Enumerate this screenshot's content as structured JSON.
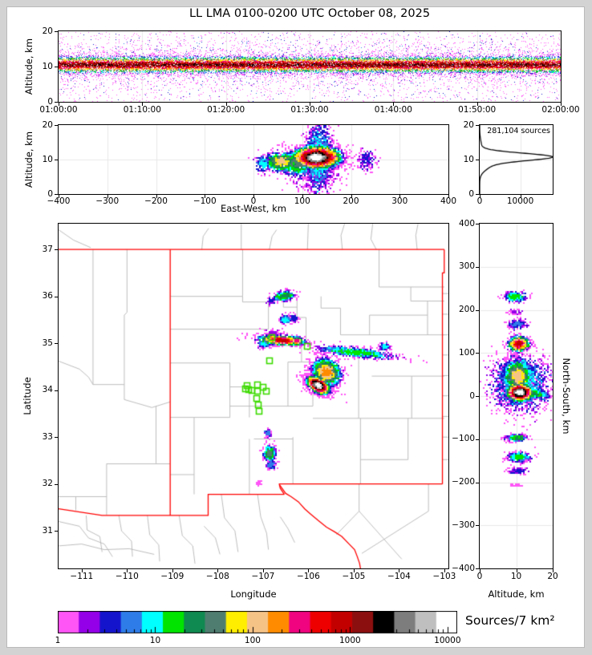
{
  "title": "LL LMA 0100-0200 UTC October 08, 2025",
  "colors": {
    "cmap": [
      "#ff55f7",
      "#9400e8",
      "#1414cc",
      "#2e7ce8",
      "#00ffff",
      "#00e400",
      "#0f8a50",
      "#4f7d70",
      "#ffee00",
      "#f6c387",
      "#ff8c00",
      "#f0047f",
      "#ee0000",
      "#c30000",
      "#8c0f0f",
      "#000000",
      "#7d7d7d",
      "#bfbfbf",
      "#ffffff"
    ],
    "state_border": "#ff0000",
    "county_line": "#b5b5b5",
    "station": "#3ddb00",
    "grid": "#e8e8e8",
    "curve": "#000000",
    "figure_margin": "#d3d3d3"
  },
  "chart_data": [
    {
      "id": "time_altitude",
      "type": "scatter",
      "ylabel": "Altitude, km",
      "x_range_s": [
        0,
        3600
      ],
      "xticks_s": [
        0,
        600,
        1200,
        1800,
        2400,
        3000,
        3600
      ],
      "xtick_labels": [
        "01:00:00",
        "01:10:00",
        "01:20:00",
        "01:30:00",
        "01:40:00",
        "01:50:00",
        "02:00:00"
      ],
      "y_range_km": [
        0,
        20
      ],
      "yticks_km": [
        0,
        10,
        20
      ],
      "band": {
        "center_km": 10.6,
        "sigma_km": 1.2,
        "half_width_km": 2.6,
        "max_level": 15,
        "n_core": 20000,
        "n_mid": 3400,
        "n_outlier": 2100
      }
    },
    {
      "id": "eastwest_altitude",
      "type": "scatter",
      "xlabel": "East-West, km",
      "ylabel": "Altitude, km",
      "x_range_km": [
        -400,
        400
      ],
      "xticks_km": [
        -400,
        -300,
        -200,
        -100,
        0,
        100,
        200,
        300,
        400
      ],
      "y_range_km": [
        0,
        20
      ],
      "yticks_km": [
        0,
        10,
        20
      ],
      "blob_format": "[center_x, center_y, sigma_x, sigma_y, rot_deg, max_color_level, n_points]",
      "blobs": [
        [
          132,
          11,
          14,
          5.2,
          0,
          4,
          1500
        ],
        [
          88,
          9.2,
          18,
          2.0,
          0,
          7,
          600
        ],
        [
          55,
          9.6,
          16,
          1.5,
          0,
          9,
          550
        ],
        [
          18,
          9.0,
          8,
          1.2,
          0,
          4,
          180
        ],
        [
          230,
          10.2,
          9,
          1.4,
          0,
          2,
          160
        ],
        [
          128,
          6,
          30,
          2.5,
          0,
          1,
          260
        ],
        [
          128,
          10.8,
          26,
          1.7,
          0,
          18,
          2800
        ]
      ]
    },
    {
      "id": "source_histogram",
      "type": "line",
      "annotation": "281,104 sources",
      "x_range": [
        0,
        18000
      ],
      "xticks": [
        0,
        10000
      ],
      "xtick_labels": [
        "0",
        "10000"
      ],
      "y_range_km": [
        0,
        20
      ],
      "yticks_km": [
        0,
        10,
        20
      ],
      "profile_components": [
        {
          "amp": 16800,
          "center_km": 10.8,
          "sigma_km": 1.05
        },
        {
          "amp": 2600,
          "center_km": 8.6,
          "sigma_km": 1.6
        },
        {
          "amp": 420,
          "center_km": 13.8,
          "sigma_km": 1.8
        }
      ]
    },
    {
      "id": "plan_map",
      "type": "scatter",
      "xlabel": "Longitude",
      "ylabel": "Latitude",
      "x_range_deg": [
        -111.51,
        -102.91
      ],
      "xticks_deg": [
        -111,
        -110,
        -109,
        -108,
        -107,
        -106,
        -105,
        -104,
        -103
      ],
      "y_range_deg": [
        30.2,
        37.55
      ],
      "yticks_deg": [
        31,
        32,
        33,
        34,
        35,
        36,
        37
      ],
      "blob_format": "[center_lon, center_lat, sigma_lon, sigma_lat, rot_deg, max_color_level, n_points]",
      "blobs": [
        [
          -105.62,
          34.4,
          0.17,
          0.14,
          -35,
          10,
          1500
        ],
        [
          -104.95,
          34.82,
          0.42,
          0.05,
          -6,
          5,
          800
        ],
        [
          -104.33,
          34.94,
          0.06,
          0.035,
          0,
          4,
          120
        ],
        [
          -105.8,
          34.12,
          0.14,
          0.075,
          -30,
          18,
          2400
        ],
        [
          -106.6,
          35.08,
          0.26,
          0.05,
          -4,
          13,
          1000
        ],
        [
          -106.27,
          35.06,
          0.07,
          0.045,
          0,
          11,
          260
        ],
        [
          -107.0,
          35.01,
          0.07,
          0.05,
          0,
          4,
          160
        ],
        [
          -106.76,
          35.22,
          0.09,
          0.04,
          0,
          1,
          80
        ],
        [
          -106.52,
          35.52,
          0.06,
          0.045,
          0,
          4,
          200
        ],
        [
          -106.34,
          35.55,
          0.05,
          0.04,
          0,
          2,
          90
        ],
        [
          -106.55,
          36.02,
          0.12,
          0.05,
          8,
          6,
          380
        ],
        [
          -106.85,
          35.92,
          0.04,
          0.035,
          0,
          2,
          70
        ],
        [
          -106.87,
          32.67,
          0.065,
          0.09,
          0,
          7,
          380
        ],
        [
          -106.83,
          32.43,
          0.05,
          0.05,
          0,
          3,
          140
        ],
        [
          -107.12,
          32.03,
          0.03,
          0.03,
          0,
          0,
          30
        ],
        [
          -106.9,
          33.1,
          0.04,
          0.04,
          0,
          3,
          70
        ]
      ],
      "stations_deg": [
        [
          -107.38,
          34.03
        ],
        [
          -107.31,
          34.02
        ],
        [
          -107.24,
          34.0
        ],
        [
          -107.13,
          34.12
        ],
        [
          -107.13,
          33.98
        ],
        [
          -107.14,
          33.82
        ],
        [
          -106.99,
          34.06
        ],
        [
          -106.92,
          33.97
        ],
        [
          -107.11,
          33.68
        ],
        [
          -107.09,
          33.55
        ],
        [
          -106.86,
          34.62
        ],
        [
          -106.02,
          34.94
        ],
        [
          -106.8,
          35.12
        ],
        [
          -107.35,
          34.1
        ]
      ],
      "state_borders_deg": [
        [
          -111.51,
          37,
          -103.0,
          37
        ],
        [
          -109.047,
          37,
          -109.047,
          31.33
        ],
        [
          -111.51,
          31.47,
          -110.55,
          31.33,
          -109.047,
          31.33,
          -108.21,
          31.33,
          -108.21,
          31.78,
          -106.53,
          31.78
        ],
        [
          -106.53,
          31.78,
          -106.62,
          31.91,
          -106.64,
          31.99
        ],
        [
          -106.64,
          31.99,
          -106.64,
          32.0,
          -103.042,
          32.0
        ],
        [
          -103.042,
          32.0,
          -103.042,
          36.5,
          -103.002,
          36.5,
          -103.002,
          37.0
        ],
        [
          -106.64,
          31.99,
          -106.5,
          31.8,
          -106.38,
          31.73,
          -106.22,
          31.62,
          -106.08,
          31.47,
          -105.95,
          31.36,
          -105.78,
          31.22,
          -105.6,
          31.08,
          -105.42,
          30.98,
          -105.26,
          30.88,
          -105.1,
          30.72,
          -104.98,
          30.6,
          -104.92,
          30.45,
          -104.87,
          30.31,
          -104.85,
          30.2
        ]
      ],
      "county_lines_deg": [
        [
          -108.35,
          37,
          -108.32,
          37.28,
          -108.2,
          37.45
        ],
        [
          -107.48,
          37,
          -107.48,
          37.55
        ],
        [
          -106.86,
          37,
          -106.8,
          37.28,
          -106.7,
          37.42
        ],
        [
          -106.02,
          37,
          -106.0,
          37.55
        ],
        [
          -105.25,
          37,
          -105.28,
          37.3,
          -105.2,
          37.55
        ],
        [
          -104.5,
          37,
          -104.62,
          37.22,
          -104.58,
          37.55
        ],
        [
          -103.6,
          37,
          -103.63,
          37.3,
          -103.58,
          37.55
        ],
        [
          -111.51,
          37.42,
          -111.18,
          37.2,
          -110.8,
          37.04
        ],
        [
          -110.75,
          37,
          -110.75,
          34.12
        ],
        [
          -110.0,
          37,
          -110.0,
          35.66,
          -110.06,
          35.6,
          -110.06,
          33.8
        ],
        [
          -110.75,
          34.12,
          -110.06,
          34.12
        ],
        [
          -111.51,
          34.62,
          -111.05,
          34.45,
          -110.85,
          34.28,
          -110.75,
          34.12
        ],
        [
          -110.06,
          33.8,
          -109.45,
          33.63,
          -109.05,
          33.75
        ],
        [
          -109.36,
          33.66,
          -109.36,
          32.43
        ],
        [
          -110.45,
          32.43,
          -109.05,
          32.43
        ],
        [
          -110.45,
          32.43,
          -110.45,
          31.34
        ],
        [
          -111.51,
          31.73,
          -110.45,
          31.73
        ],
        [
          -111.13,
          31.73,
          -111.13,
          31.44
        ],
        [
          -107.45,
          37,
          -107.45,
          36.0
        ],
        [
          -109.05,
          36.0,
          -107.45,
          36.0
        ],
        [
          -107.45,
          36.0,
          -107.45,
          35.88,
          -106.88,
          35.88,
          -106.88,
          35.3
        ],
        [
          -109.05,
          35.3,
          -106.88,
          35.3
        ],
        [
          -109.05,
          34.58,
          -107.73,
          34.58
        ],
        [
          -107.73,
          34.58,
          -107.73,
          33.42
        ],
        [
          -109.05,
          33.42,
          -107.73,
          33.42
        ],
        [
          -108.52,
          33.42,
          -108.52,
          31.78
        ],
        [
          -109.05,
          32.2,
          -108.52,
          32.2
        ],
        [
          -107.73,
          33.66,
          -105.9,
          33.66
        ],
        [
          -107.73,
          34.07,
          -107.3,
          34.07,
          -107.3,
          33.42
        ],
        [
          -106.45,
          34.6,
          -106.45,
          33.66
        ],
        [
          -105.9,
          34.6,
          -105.9,
          33.66
        ],
        [
          -106.45,
          34.6,
          -105.9,
          34.6
        ],
        [
          -104.44,
          37,
          -104.44,
          36.2
        ],
        [
          -104.44,
          36.2,
          -103.0,
          36.2
        ],
        [
          -103.74,
          36.2,
          -103.74,
          35.9,
          -103.0,
          35.9
        ],
        [
          -105.72,
          36.0,
          -105.72,
          35.75,
          -105.29,
          35.75,
          -105.29,
          35.18
        ],
        [
          -105.29,
          35.18,
          -103.0,
          35.18
        ],
        [
          -104.65,
          35.6,
          -103.37,
          35.6
        ],
        [
          -103.37,
          35.9,
          -103.37,
          35.18
        ],
        [
          -104.65,
          35.6,
          -104.65,
          35.18
        ],
        [
          -106.25,
          35.97,
          -106.25,
          35.55,
          -106.05,
          35.55,
          -106.05,
          35.05,
          -106.15,
          35.05,
          -106.15,
          34.6
        ],
        [
          -106.55,
          35.88,
          -106.55,
          35.77,
          -106.25,
          35.77
        ],
        [
          -106.88,
          34.95,
          -106.15,
          34.95
        ],
        [
          -104.89,
          34.75,
          -104.89,
          33.4
        ],
        [
          -105.9,
          33.4,
          -103.0,
          33.4
        ],
        [
          -103.72,
          34.3,
          -103.72,
          33.4
        ],
        [
          -104.6,
          34.3,
          -103.0,
          34.3
        ],
        [
          -103.8,
          33.4,
          -103.8,
          32.52
        ],
        [
          -104.85,
          32.52,
          -103.8,
          32.52
        ],
        [
          -104.85,
          33.4,
          -104.85,
          32.0
        ],
        [
          -106.34,
          33.0,
          -106.34,
          32.0
        ],
        [
          -107.2,
          32.96,
          -106.34,
          32.96
        ],
        [
          -107.3,
          32.96,
          -107.3,
          31.78
        ],
        [
          -105.38,
          30.92,
          -104.88,
          31.42
        ],
        [
          -104.88,
          31.42,
          -104.88,
          32.0
        ],
        [
          -104.88,
          31.42,
          -103.94,
          30.4
        ],
        [
          -104.82,
          30.52,
          -103.35,
          31.42
        ],
        [
          -103.35,
          31.42,
          -103.35,
          32.0
        ],
        [
          -111.51,
          31.2,
          -111.05,
          31.1,
          -110.85,
          30.85,
          -110.5,
          30.72,
          -110.32,
          30.45
        ],
        [
          -110.9,
          31.33,
          -110.88,
          31.02,
          -110.6,
          30.88,
          -110.55,
          30.55
        ],
        [
          -110.18,
          31.33,
          -110.12,
          31.0,
          -109.9,
          30.78,
          -109.88,
          30.45
        ],
        [
          -109.55,
          31.33,
          -109.5,
          30.92,
          -109.3,
          30.7,
          -109.28,
          30.35
        ],
        [
          -108.85,
          31.33,
          -108.78,
          30.9,
          -108.55,
          30.68,
          -108.5,
          30.3
        ],
        [
          -107.92,
          31.78,
          -107.85,
          31.28,
          -107.62,
          31.0,
          -107.55,
          30.55
        ],
        [
          -107.12,
          31.78,
          -107.05,
          31.3,
          -106.92,
          30.95,
          -106.88,
          30.6
        ],
        [
          -111.51,
          30.68,
          -111.0,
          30.72,
          -110.5,
          30.6,
          -109.95,
          30.62,
          -109.4,
          30.5
        ],
        [
          -108.3,
          31.1,
          -108.05,
          30.85,
          -107.95,
          30.5
        ],
        [
          -106.62,
          31.3,
          -106.45,
          31.05,
          -106.3,
          30.75
        ]
      ],
      "tx_sliver_lats": [
        36.06,
        35.62,
        35.18,
        34.75,
        34.31,
        33.88,
        33.44,
        33.0,
        32.52
      ]
    },
    {
      "id": "northsouth_altitude",
      "type": "scatter",
      "xlabel": "Altitude, km",
      "ylabel_right": "North-South, km",
      "x_range_km": [
        0,
        20
      ],
      "xticks_km": [
        0,
        10,
        20
      ],
      "y_range_km": [
        -400,
        400
      ],
      "yticks_km": [
        400,
        300,
        200,
        100,
        0,
        -100,
        -200,
        -300,
        -400
      ],
      "blob_format": "[center_alt, center_ns, sigma_alt, sigma_ns, rot_deg, max_color_level, n_points]",
      "blobs": [
        [
          11,
          30,
          4.2,
          32,
          0,
          4,
          1600
        ],
        [
          10.2,
          48,
          2.0,
          20,
          0,
          9,
          1400
        ],
        [
          13.5,
          8,
          2.6,
          6,
          15,
          6,
          500
        ],
        [
          10.8,
          10,
          1.8,
          10,
          0,
          18,
          2600
        ],
        [
          10.5,
          123,
          1.5,
          9,
          0,
          13,
          700
        ],
        [
          10,
          168,
          1.3,
          5,
          0,
          3,
          200
        ],
        [
          9.5,
          196,
          1.0,
          3,
          0,
          1,
          60
        ],
        [
          9.5,
          232,
          1.6,
          6,
          0,
          5,
          300
        ],
        [
          9.8,
          -95,
          1.4,
          4,
          0,
          6,
          250
        ],
        [
          10.5,
          -140,
          1.6,
          6,
          0,
          5,
          300
        ],
        [
          10.3,
          -172,
          1.2,
          4,
          0,
          2,
          120
        ],
        [
          10,
          -205,
          1.0,
          2,
          0,
          0,
          20
        ]
      ]
    },
    {
      "id": "colorbar",
      "type": "colorbar",
      "title": "Sources/7 km²",
      "scale": "log",
      "tick_values": [
        1,
        10,
        100,
        1000,
        10000
      ],
      "tick_labels": [
        "1",
        "10",
        "100",
        "1000",
        "10000"
      ],
      "decades_span": 4.1,
      "n_segments": 19
    }
  ]
}
